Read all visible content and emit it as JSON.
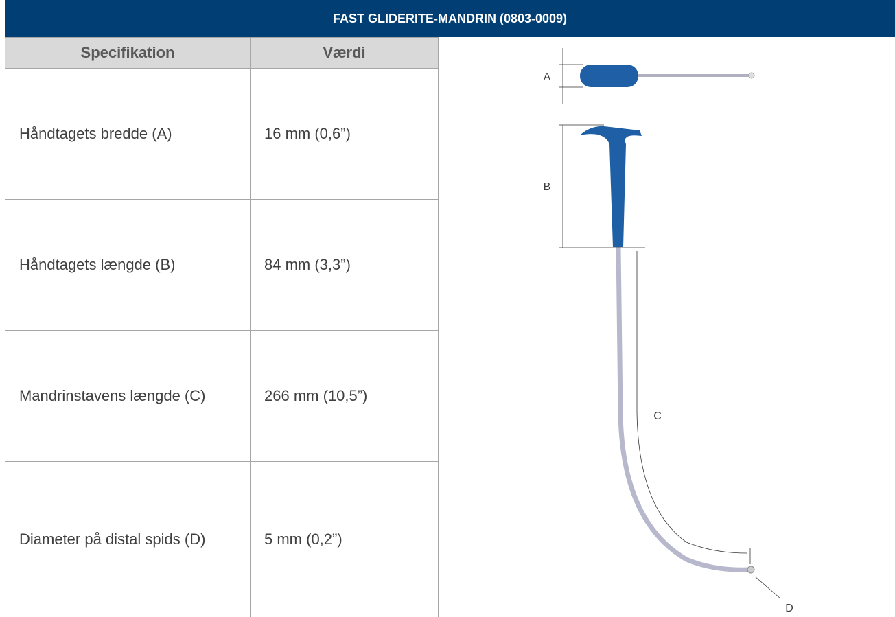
{
  "header": {
    "title": "FAST GLIDERITE-MANDRIN (0803-0009)"
  },
  "table": {
    "columns": [
      "Specifikation",
      "Værdi"
    ],
    "rows": [
      [
        "Håndtagets bredde (A)",
        "16 mm (0,6”)"
      ],
      [
        "Håndtagets længde (B)",
        "84 mm (3,3”)"
      ],
      [
        "Mandrinstavens længde (C)",
        "266 mm (10,5”)"
      ],
      [
        "Diameter på distal spids (D)",
        "5 mm (0,2”)"
      ]
    ]
  },
  "diagram": {
    "labels": [
      "A",
      "B",
      "C",
      "D"
    ]
  }
}
